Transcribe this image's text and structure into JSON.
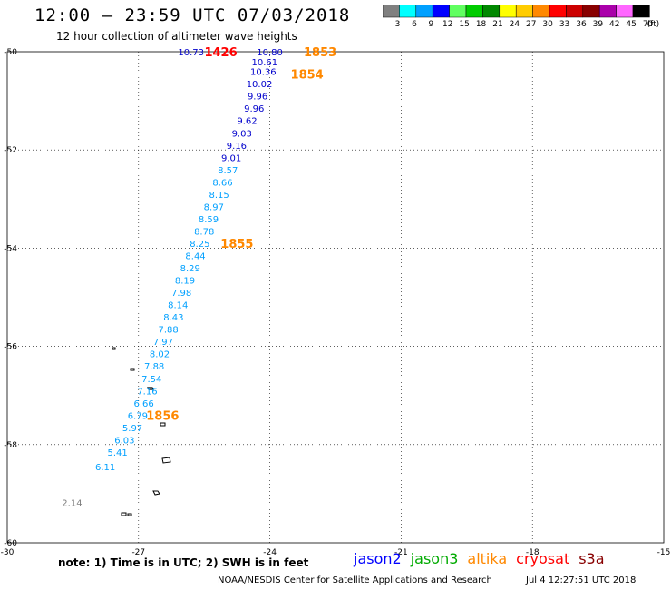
{
  "header": {
    "title": "12:00 — 23:59 UTC 07/03/2018",
    "subtitle": "12 hour collection of altimeter wave heights"
  },
  "colorbar": {
    "unit": "(ft)",
    "bins": [
      {
        "label": "3",
        "color": "#808080"
      },
      {
        "label": "6",
        "color": "#00ffff"
      },
      {
        "label": "9",
        "color": "#00a0ff"
      },
      {
        "label": "12",
        "color": "#0000ff"
      },
      {
        "label": "15",
        "color": "#60ff60"
      },
      {
        "label": "18",
        "color": "#00cc00"
      },
      {
        "label": "21",
        "color": "#008800"
      },
      {
        "label": "24",
        "color": "#ffff00"
      },
      {
        "label": "27",
        "color": "#ffcc00"
      },
      {
        "label": "30",
        "color": "#ff8800"
      },
      {
        "label": "33",
        "color": "#ff0000"
      },
      {
        "label": "36",
        "color": "#cc0000"
      },
      {
        "label": "39",
        "color": "#880000"
      },
      {
        "label": "42",
        "color": "#aa00aa"
      },
      {
        "label": "45",
        "color": "#ff66ff"
      },
      {
        "label": "70",
        "color": "#000000"
      }
    ]
  },
  "map": {
    "lon_range": [
      -30,
      -15
    ],
    "lat_range": [
      -60,
      -50
    ],
    "x_ticks": [
      {
        "lon": -30,
        "label": "-30"
      },
      {
        "lon": -27,
        "label": "-27"
      },
      {
        "lon": -24,
        "label": "-24"
      },
      {
        "lon": -21,
        "label": "-21"
      },
      {
        "lon": -18,
        "label": "-18"
      },
      {
        "lon": -15,
        "label": "-15"
      }
    ],
    "y_ticks": [
      {
        "lat": -50,
        "label": "-50"
      },
      {
        "lat": -52,
        "label": "-52"
      },
      {
        "lat": -54,
        "label": "-54"
      },
      {
        "lat": -56,
        "label": "-56"
      },
      {
        "lat": -58,
        "label": "-58"
      },
      {
        "lat": -60,
        "label": "-60"
      }
    ],
    "observations": [
      {
        "lon": -25.8,
        "lat": -50.0,
        "value": "10.73",
        "color": "#0000cc"
      },
      {
        "lon": -24.0,
        "lat": -50.0,
        "value": "10.80",
        "color": "#0000cc"
      },
      {
        "lon": -24.12,
        "lat": -50.2,
        "value": "10.61",
        "color": "#0000cc"
      },
      {
        "lon": -24.15,
        "lat": -50.4,
        "value": "10.36",
        "color": "#0000cc"
      },
      {
        "lon": -24.24,
        "lat": -50.65,
        "value": "10.02",
        "color": "#0000cc"
      },
      {
        "lon": -24.28,
        "lat": -50.9,
        "value": "9.96",
        "color": "#0000cc"
      },
      {
        "lon": -24.36,
        "lat": -51.15,
        "value": "9.96",
        "color": "#0000cc"
      },
      {
        "lon": -24.52,
        "lat": -51.4,
        "value": "9.62",
        "color": "#0000cc"
      },
      {
        "lon": -24.64,
        "lat": -51.65,
        "value": "9.03",
        "color": "#0000cc"
      },
      {
        "lon": -24.76,
        "lat": -51.9,
        "value": "9.16",
        "color": "#0000cc"
      },
      {
        "lon": -24.88,
        "lat": -52.15,
        "value": "9.01",
        "color": "#0000cc"
      },
      {
        "lon": -24.96,
        "lat": -52.4,
        "value": "8.57",
        "color": "#00a0ff"
      },
      {
        "lon": -25.08,
        "lat": -52.65,
        "value": "8.66",
        "color": "#00a0ff"
      },
      {
        "lon": -25.16,
        "lat": -52.9,
        "value": "8.15",
        "color": "#00a0ff"
      },
      {
        "lon": -25.28,
        "lat": -53.15,
        "value": "8.97",
        "color": "#00a0ff"
      },
      {
        "lon": -25.4,
        "lat": -53.4,
        "value": "8.59",
        "color": "#00a0ff"
      },
      {
        "lon": -25.5,
        "lat": -53.65,
        "value": "8.78",
        "color": "#00a0ff"
      },
      {
        "lon": -25.6,
        "lat": -53.9,
        "value": "8.25",
        "color": "#00a0ff"
      },
      {
        "lon": -25.7,
        "lat": -54.15,
        "value": "8.44",
        "color": "#00a0ff"
      },
      {
        "lon": -25.82,
        "lat": -54.4,
        "value": "8.29",
        "color": "#00a0ff"
      },
      {
        "lon": -25.94,
        "lat": -54.65,
        "value": "8.19",
        "color": "#00a0ff"
      },
      {
        "lon": -26.02,
        "lat": -54.9,
        "value": "7.98",
        "color": "#00a0ff"
      },
      {
        "lon": -26.1,
        "lat": -55.15,
        "value": "8.14",
        "color": "#00a0ff"
      },
      {
        "lon": -26.2,
        "lat": -55.4,
        "value": "8.43",
        "color": "#00a0ff"
      },
      {
        "lon": -26.32,
        "lat": -55.65,
        "value": "7.88",
        "color": "#00a0ff"
      },
      {
        "lon": -26.44,
        "lat": -55.9,
        "value": "7.97",
        "color": "#00a0ff"
      },
      {
        "lon": -26.52,
        "lat": -56.15,
        "value": "8.02",
        "color": "#00a0ff"
      },
      {
        "lon": -26.64,
        "lat": -56.4,
        "value": "7.88",
        "color": "#00a0ff"
      },
      {
        "lon": -26.7,
        "lat": -56.65,
        "value": "7.54",
        "color": "#00a0ff"
      },
      {
        "lon": -26.8,
        "lat": -56.9,
        "value": "7.16",
        "color": "#00a0ff"
      },
      {
        "lon": -26.88,
        "lat": -57.15,
        "value": "6.66",
        "color": "#00a0ff"
      },
      {
        "lon": -27.02,
        "lat": -57.4,
        "value": "6.79",
        "color": "#00a0ff"
      },
      {
        "lon": -27.14,
        "lat": -57.65,
        "value": "5.97",
        "color": "#00a0ff"
      },
      {
        "lon": -27.32,
        "lat": -57.9,
        "value": "6.03",
        "color": "#00a0ff"
      },
      {
        "lon": -27.48,
        "lat": -58.15,
        "value": "5.41",
        "color": "#00a0ff"
      },
      {
        "lon": -27.76,
        "lat": -58.45,
        "value": "6.11",
        "color": "#00a0ff"
      },
      {
        "lon": -28.52,
        "lat": -59.18,
        "value": "2.14",
        "color": "#808080"
      }
    ],
    "time_labels": [
      {
        "lon": -25.12,
        "lat": -50.0,
        "value": "1426",
        "color": "#ff0000"
      },
      {
        "lon": -22.85,
        "lat": -50.0,
        "value": "1853",
        "color": "#ff8800"
      },
      {
        "lon": -23.15,
        "lat": -50.45,
        "value": "1854",
        "color": "#ff8800"
      },
      {
        "lon": -24.75,
        "lat": -53.9,
        "value": "1855",
        "color": "#ff8800"
      },
      {
        "lon": -26.45,
        "lat": -57.4,
        "value": "1856",
        "color": "#ff8800"
      }
    ]
  },
  "footer": {
    "note": "note:  1) Time is in UTC;  2) SWH is in feet",
    "satellites": [
      {
        "name": "jason2",
        "color": "#0000ff"
      },
      {
        "name": "jason3",
        "color": "#00aa00"
      },
      {
        "name": "altika",
        "color": "#ff8800"
      },
      {
        "name": "cryosat",
        "color": "#ff0000"
      },
      {
        "name": "s3a",
        "color": "#880000"
      }
    ],
    "credit": "NOAA/NESDIS Center for Satellite Applications and Research",
    "timestamp": "Jul  4 12:27:51 UTC 2018"
  }
}
